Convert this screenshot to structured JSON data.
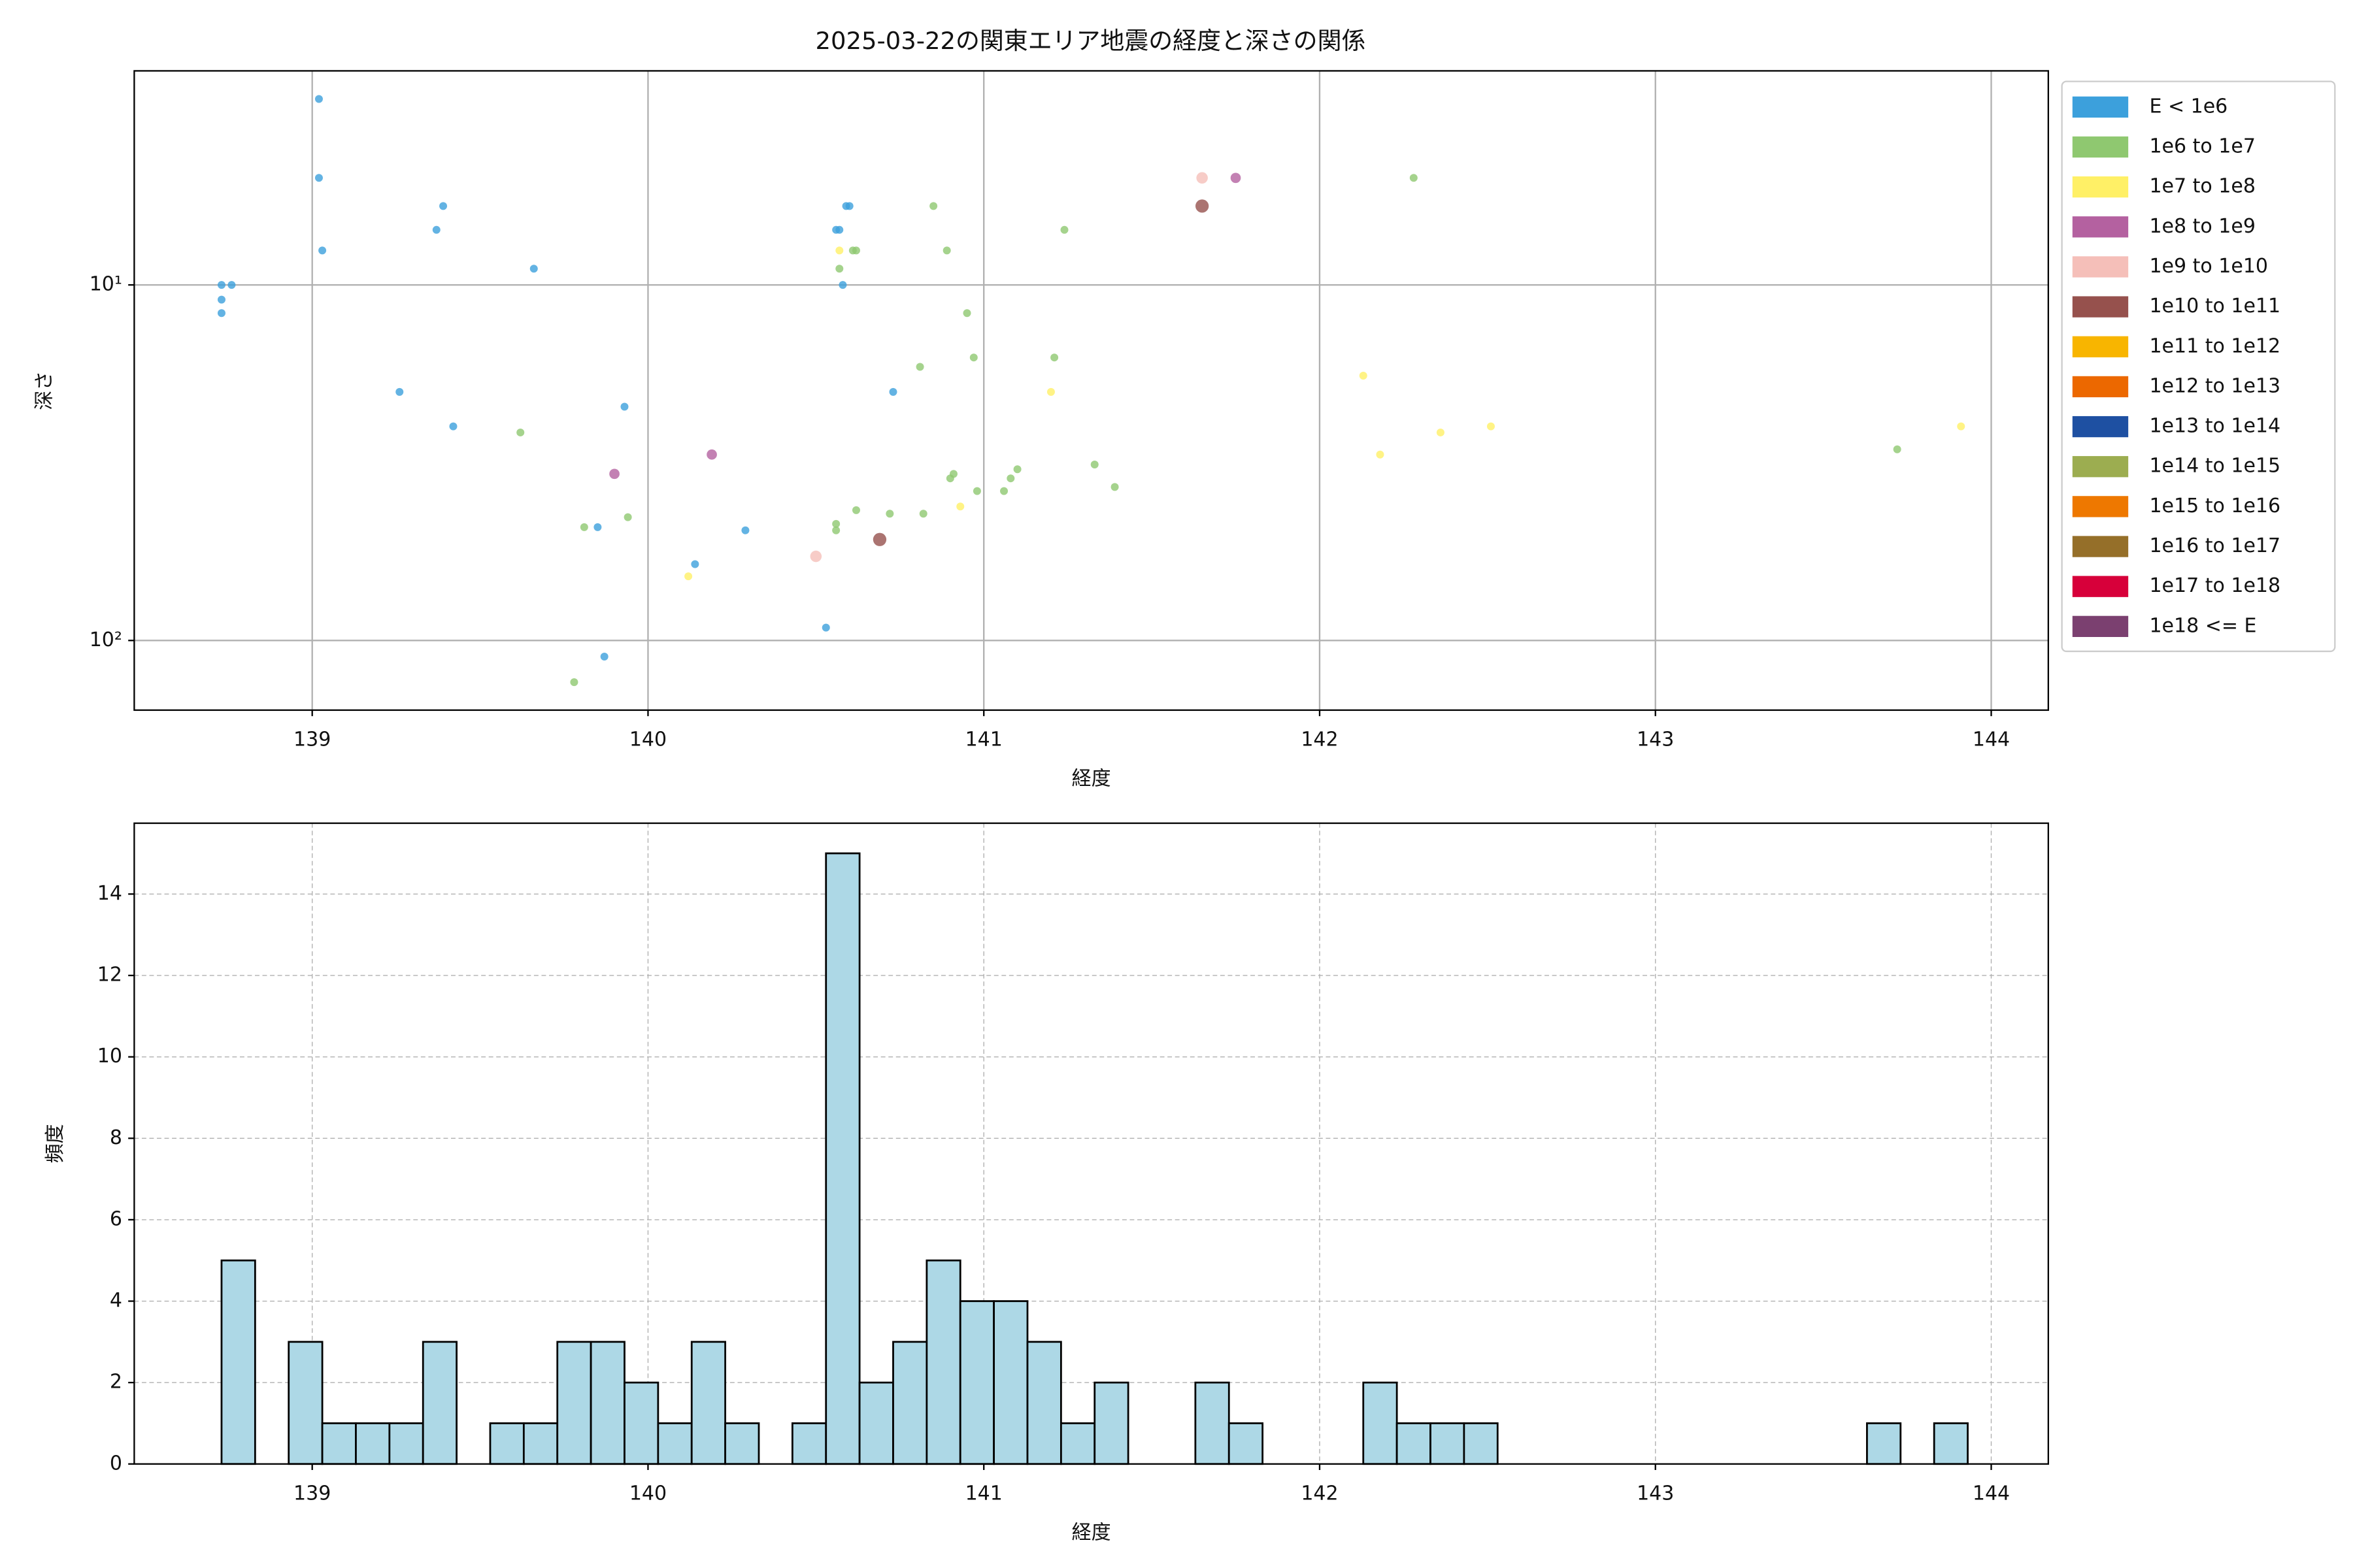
{
  "chart_data": [
    {
      "type": "scatter",
      "title": "2025-03-22の関東エリア地震の経度と深さの関係",
      "xlabel": "経度",
      "ylabel": "深さ",
      "xlim": [
        138.47,
        144.17
      ],
      "xticks": [
        139,
        140,
        141,
        142,
        143,
        144
      ],
      "ylim": [
        157,
        2.5
      ],
      "log_y": true,
      "yticks": [
        {
          "value": 10,
          "label": "10¹"
        },
        {
          "value": 100,
          "label": "10²"
        }
      ],
      "grid": true,
      "grid_style": "solid",
      "legend": "outside-right",
      "series": [
        {
          "name": "E < 1e6",
          "color": "#3ca0dc",
          "x": [
            138.73,
            138.76,
            138.73,
            138.73,
            139.02,
            139.02,
            139.03,
            139.37,
            139.39,
            139.66,
            139.26,
            139.42,
            139.93,
            139.85,
            140.14,
            140.29,
            139.87,
            140.53,
            140.59,
            140.6,
            140.56,
            140.57,
            140.58,
            140.73
          ],
          "y": [
            10,
            10,
            11,
            12,
            3,
            5,
            8,
            7,
            6,
            9,
            20,
            25,
            22,
            48,
            61,
            49,
            111,
            92,
            6,
            6,
            7,
            7,
            10,
            20
          ]
        },
        {
          "name": "1e6 to 1e7",
          "color": "#8fc870",
          "x": [
            139.62,
            139.81,
            139.94,
            139.78,
            140.57,
            140.61,
            140.62,
            140.85,
            140.89,
            140.95,
            140.97,
            140.81,
            141.24,
            141.21,
            142.28,
            140.56,
            140.56,
            140.62,
            140.72,
            140.82,
            140.9,
            140.91,
            140.98,
            141.06,
            141.08,
            141.1,
            141.33,
            141.39,
            143.72
          ],
          "y": [
            26,
            48,
            45,
            131,
            9,
            8,
            8,
            6,
            8,
            12,
            16,
            17,
            7,
            16,
            5,
            47,
            49,
            43,
            44,
            44,
            35,
            34,
            38,
            38,
            35,
            33,
            32,
            37,
            29
          ]
        },
        {
          "name": "1e7 to 1e8",
          "color": "#fff066",
          "x": [
            140.57,
            141.2,
            140.93,
            140.12,
            142.13,
            142.18,
            142.36,
            142.51,
            143.91
          ],
          "y": [
            8,
            20,
            42,
            66,
            18,
            30,
            26,
            25,
            25
          ]
        },
        {
          "name": "1e8 to 1e9",
          "color": "#b461a0",
          "x": [
            141.75,
            140.19,
            139.9
          ],
          "y": [
            5,
            30,
            34
          ]
        },
        {
          "name": "1e9 to 1e10",
          "color": "#f5bfb9",
          "x": [
            141.65,
            140.5
          ],
          "y": [
            5,
            58
          ]
        },
        {
          "name": "1e10 to 1e11",
          "color": "#96514d",
          "x": [
            141.65,
            140.69
          ],
          "y": [
            6,
            52
          ]
        },
        {
          "name": "1e11 to 1e12",
          "color": "#f8b500",
          "x": [],
          "y": []
        },
        {
          "name": "1e12 to 1e13",
          "color": "#ec6800",
          "x": [],
          "y": []
        },
        {
          "name": "1e13 to 1e14",
          "color": "#1e50a2",
          "x": [],
          "y": []
        },
        {
          "name": "1e14 to 1e15",
          "color": "#9cad50",
          "x": [],
          "y": []
        },
        {
          "name": "1e15 to 1e16",
          "color": "#ee7800",
          "x": [],
          "y": []
        },
        {
          "name": "1e16 to 1e17",
          "color": "#956f29",
          "x": [],
          "y": []
        },
        {
          "name": "1e17 to 1e18",
          "color": "#d7003a",
          "x": [],
          "y": []
        },
        {
          "name": "1e18 <= E",
          "color": "#7b4070",
          "x": [],
          "y": []
        }
      ]
    },
    {
      "type": "histogram",
      "xlabel": "経度",
      "ylabel": "頻度",
      "color": "#add8e6",
      "edgecolor": "#000000",
      "xlim": [
        138.47,
        144.17
      ],
      "xticks": [
        139,
        140,
        141,
        142,
        143,
        144
      ],
      "ylim": [
        0,
        15.74
      ],
      "yticks": [
        0,
        2,
        4,
        6,
        8,
        10,
        12,
        14
      ],
      "grid": true,
      "grid_style": "dashed",
      "bins": [
        138.73,
        138.83,
        138.93,
        139.03,
        139.13,
        139.23,
        139.33,
        139.43,
        139.53,
        139.63,
        139.73,
        139.83,
        139.93,
        140.03,
        140.13,
        140.23,
        140.33,
        140.43,
        140.53,
        140.63,
        140.73,
        140.83,
        140.93,
        141.03,
        141.13,
        141.23,
        141.33,
        141.43,
        141.53,
        141.63,
        141.73,
        141.83,
        141.93,
        142.03,
        142.13,
        142.23,
        142.33,
        142.43,
        142.53,
        142.63,
        142.73,
        142.83,
        142.93,
        143.03,
        143.13,
        143.23,
        143.33,
        143.43,
        143.53,
        143.63,
        143.73,
        143.83,
        143.93
      ],
      "values": [
        5,
        0,
        3,
        1,
        1,
        1,
        3,
        0,
        1,
        1,
        3,
        3,
        2,
        1,
        3,
        1,
        0,
        1,
        15,
        2,
        3,
        5,
        4,
        4,
        3,
        1,
        2,
        0,
        0,
        2,
        1,
        0,
        0,
        0,
        2,
        1,
        1,
        1,
        0,
        0,
        0,
        0,
        0,
        0,
        0,
        0,
        0,
        0,
        0,
        1,
        0,
        1
      ]
    }
  ]
}
